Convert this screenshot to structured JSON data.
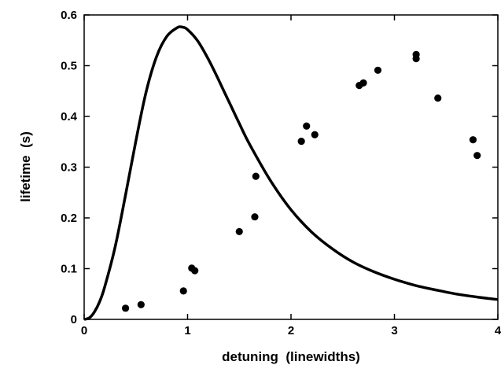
{
  "chart_data": {
    "type": "scatter",
    "title": "",
    "xlabel": "detuning  (linewidths)",
    "ylabel": "lifetime  (s)",
    "xlim": [
      0,
      4
    ],
    "ylim": [
      0,
      0.6
    ],
    "x_ticks": [
      0,
      1,
      2,
      3,
      4
    ],
    "x_tick_labels": [
      "0",
      "1",
      "2",
      "3",
      "4"
    ],
    "y_ticks": [
      0,
      0.1,
      0.2,
      0.3,
      0.4,
      0.5,
      0.6
    ],
    "y_tick_labels": [
      "0",
      "0.1",
      "0.2",
      "0.3",
      "0.4",
      "0.5",
      "0.6"
    ],
    "grid": false,
    "legend": "none",
    "colors": {
      "marks": "#000000",
      "background": "#ffffff"
    },
    "series": [
      {
        "kind": "points",
        "x": [
          0.4,
          0.55,
          0.96,
          1.04,
          1.07,
          1.5,
          1.65,
          1.66,
          2.1,
          2.15,
          2.23,
          2.66,
          2.7,
          2.84,
          3.21,
          3.21,
          3.42,
          3.76,
          3.8
        ],
        "y": [
          0.022,
          0.029,
          0.056,
          0.101,
          0.096,
          0.173,
          0.202,
          0.282,
          0.351,
          0.381,
          0.364,
          0.461,
          0.466,
          0.491,
          0.514,
          0.522,
          0.436,
          0.354,
          0.323
        ]
      },
      {
        "kind": "curve",
        "x": [
          0,
          0.05,
          0.1,
          0.15,
          0.2,
          0.3,
          0.4,
          0.5,
          0.6,
          0.7,
          0.8,
          0.9,
          0.95,
          1.0,
          1.1,
          1.2,
          1.3,
          1.4,
          1.5,
          1.6,
          1.8,
          2.0,
          2.2,
          2.4,
          2.6,
          2.8,
          3.0,
          3.2,
          3.4,
          3.6,
          3.8,
          4.0
        ],
        "y": [
          0,
          0.003,
          0.015,
          0.035,
          0.065,
          0.143,
          0.245,
          0.352,
          0.449,
          0.518,
          0.558,
          0.575,
          0.576,
          0.571,
          0.548,
          0.513,
          0.472,
          0.429,
          0.386,
          0.345,
          0.274,
          0.216,
          0.172,
          0.139,
          0.113,
          0.094,
          0.079,
          0.067,
          0.058,
          0.05,
          0.044,
          0.039
        ]
      }
    ]
  }
}
